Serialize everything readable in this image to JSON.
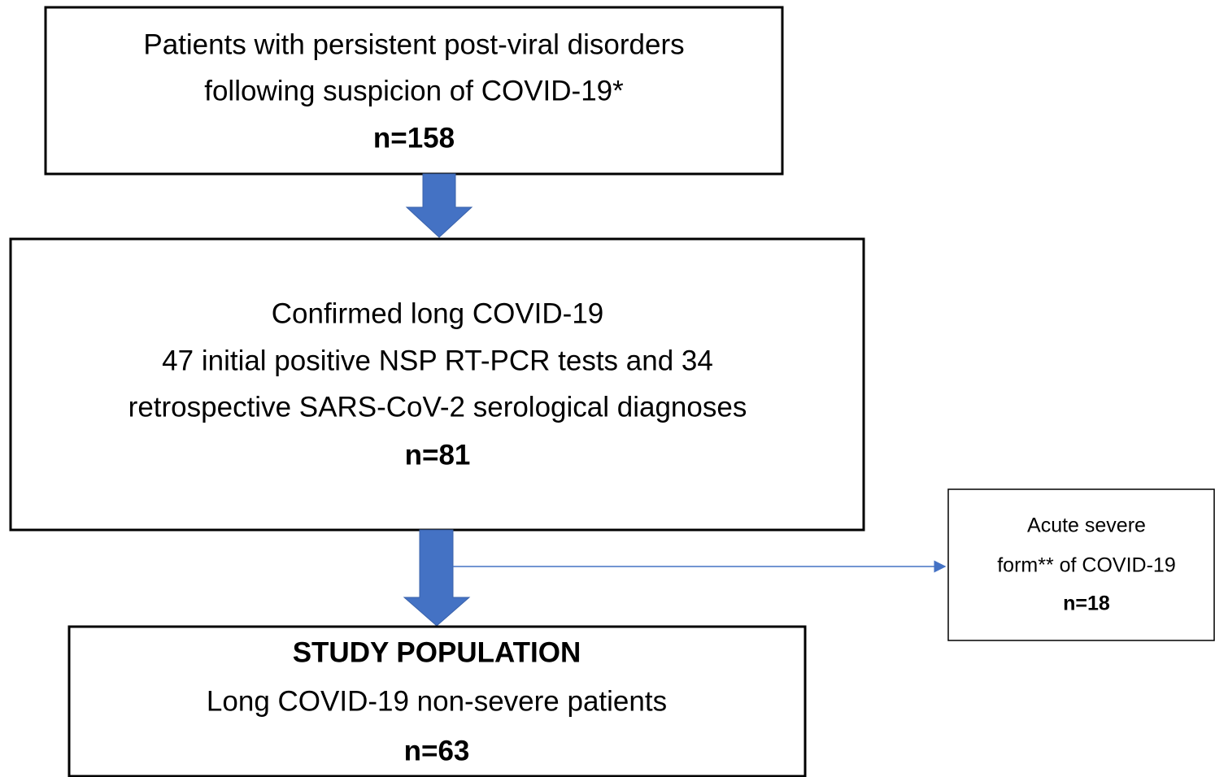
{
  "nodes": [
    {
      "lines": [
        "Patients with persistent post-viral disorders",
        "following suspicion of COVID-19*"
      ],
      "count": "n=158"
    },
    {
      "lines": [
        "Confirmed long COVID-19",
        "47 initial positive NSP RT-PCR tests and 34",
        "retrospective SARS-CoV-2 serological diagnoses"
      ],
      "count": "n=81"
    },
    {
      "heading": "STUDY POPULATION",
      "lines": [
        "Long COVID-19 non-severe patients"
      ],
      "count": "n=63"
    },
    {
      "lines": [
        "Acute severe",
        "form** of COVID-19"
      ],
      "count": "n=18"
    }
  ]
}
